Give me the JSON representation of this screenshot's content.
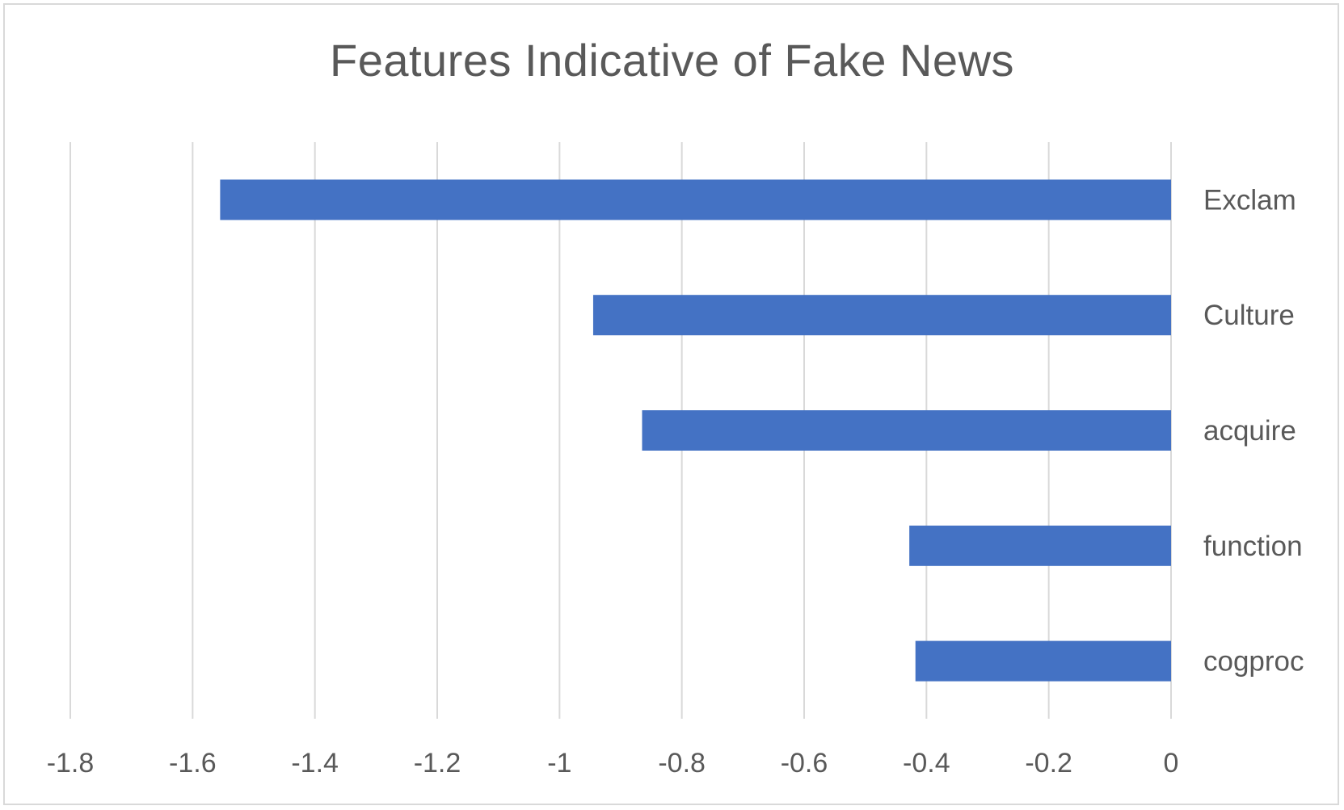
{
  "chart_data": {
    "type": "bar",
    "orientation": "horizontal",
    "title": "Features Indicative of Fake News",
    "xlabel": "",
    "ylabel": "",
    "categories": [
      "Exclam",
      "Culture",
      "acquire",
      "function",
      "cogproc"
    ],
    "values": [
      -1.555,
      -0.945,
      -0.865,
      -0.428,
      -0.418
    ],
    "xlim": [
      -1.8,
      0
    ],
    "x_ticks": [
      -1.8,
      -1.6,
      -1.4,
      -1.2,
      -1,
      -0.8,
      -0.6,
      -0.4,
      -0.2,
      0
    ],
    "x_tick_labels": [
      "-1.8",
      "-1.6",
      "-1.4",
      "-1.2",
      "-1",
      "-0.8",
      "-0.6",
      "-0.4",
      "-0.2",
      "0"
    ],
    "grid": "vertical",
    "legend": "none",
    "colors": {
      "bar": "#4472C4",
      "gridline": "#D9D9D9",
      "text": "#595959",
      "border": "#D9D9D9"
    }
  }
}
